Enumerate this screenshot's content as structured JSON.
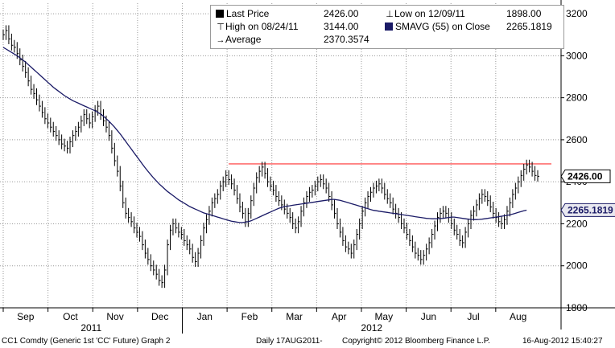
{
  "legend": {
    "last_price": {
      "label": "Last Price",
      "value": "2426.00",
      "color": "#000000"
    },
    "low": {
      "label": "Low on 12/09/11",
      "value": "1898.00"
    },
    "high": {
      "label": "High on 08/24/11",
      "value": "3144.00"
    },
    "smavg": {
      "label": "SMAVG (55) on Close",
      "value": "2265.1819",
      "color": "#1a1a66"
    },
    "average": {
      "label": "Average",
      "value": "2370.3574"
    }
  },
  "footer": {
    "ticker": "CC1 Comdty (Generic 1st 'CC' Future) Graph 2",
    "period": "Daily 17AUG2011-",
    "copyright": "Copyright© 2012 Bloomberg Finance L.P.",
    "timestamp": "16-Aug-2012 15:40:27"
  },
  "chart_data": {
    "type": "line",
    "subtype": "ohlc bars with moving average",
    "y_axis": {
      "position": "right",
      "ylim": [
        1800,
        3250
      ],
      "ticks": [
        "3200",
        "3000",
        "2800",
        "2600",
        "2400",
        "2200",
        "2000",
        "1800"
      ]
    },
    "x_axis": {
      "months": [
        "Sep",
        "Oct",
        "Nov",
        "Dec",
        "Jan",
        "Feb",
        "Mar",
        "Apr",
        "May",
        "Jun",
        "Jul",
        "Aug"
      ],
      "years": [
        "2011",
        "2012"
      ]
    },
    "grid": "dotted",
    "price_labels": [
      {
        "text": "2426.00",
        "value": 2426,
        "style": "last"
      },
      {
        "text": "2265.1819",
        "value": 2265.1819,
        "style": "sma"
      }
    ],
    "resistance_line": {
      "value": 2485,
      "color": "#ff3333"
    },
    "series": [
      {
        "name": "Last Price",
        "color": "#000000",
        "values": [
          3100,
          3120,
          3080,
          3050,
          3040,
          3010,
          2980,
          2950,
          2920,
          2880,
          2840,
          2820,
          2790,
          2760,
          2730,
          2700,
          2680,
          2660,
          2640,
          2620,
          2600,
          2580,
          2570,
          2560,
          2590,
          2620,
          2640,
          2660,
          2690,
          2720,
          2700,
          2680,
          2710,
          2740,
          2760,
          2720,
          2690,
          2660,
          2620,
          2560,
          2500,
          2450,
          2380,
          2300,
          2250,
          2230,
          2210,
          2180,
          2160,
          2140,
          2100,
          2060,
          2030,
          2000,
          1980,
          1960,
          1930,
          1920,
          1980,
          2100,
          2170,
          2200,
          2180,
          2160,
          2150,
          2120,
          2100,
          2080,
          2040,
          2020,
          2060,
          2120,
          2180,
          2220,
          2260,
          2300,
          2320,
          2340,
          2380,
          2400,
          2430,
          2410,
          2390,
          2360,
          2320,
          2280,
          2250,
          2210,
          2250,
          2310,
          2370,
          2420,
          2450,
          2470,
          2440,
          2400,
          2380,
          2360,
          2330,
          2310,
          2290,
          2270,
          2250,
          2230,
          2200,
          2180,
          2210,
          2260,
          2300,
          2330,
          2350,
          2360,
          2380,
          2400,
          2410,
          2390,
          2370,
          2330,
          2290,
          2250,
          2200,
          2160,
          2120,
          2090,
          2080,
          2060,
          2100,
          2150,
          2200,
          2260,
          2300,
          2330,
          2350,
          2370,
          2380,
          2390,
          2370,
          2340,
          2320,
          2300,
          2270,
          2250,
          2230,
          2200,
          2180,
          2150,
          2120,
          2090,
          2060,
          2050,
          2030,
          2050,
          2080,
          2110,
          2150,
          2190,
          2230,
          2250,
          2260,
          2250,
          2230,
          2200,
          2170,
          2150,
          2120,
          2110,
          2160,
          2200,
          2240,
          2260,
          2290,
          2320,
          2340,
          2330,
          2310,
          2280,
          2250,
          2230,
          2210,
          2200,
          2220,
          2260,
          2300,
          2340,
          2370,
          2400,
          2430,
          2460,
          2480,
          2470,
          2450,
          2430,
          2426
        ]
      },
      {
        "name": "SMAVG (55) on Close",
        "color": "#1a1a66",
        "values": [
          3040,
          3032,
          3024,
          3016,
          3008,
          3000,
          2990,
          2980,
          2970,
          2958,
          2946,
          2934,
          2922,
          2910,
          2898,
          2886,
          2874,
          2862,
          2850,
          2840,
          2830,
          2820,
          2810,
          2802,
          2794,
          2786,
          2780,
          2774,
          2768,
          2762,
          2756,
          2750,
          2744,
          2738,
          2730,
          2722,
          2712,
          2700,
          2688,
          2674,
          2660,
          2644,
          2628,
          2610,
          2592,
          2574,
          2556,
          2538,
          2520,
          2502,
          2484,
          2466,
          2450,
          2434,
          2418,
          2404,
          2390,
          2378,
          2366,
          2354,
          2344,
          2334,
          2324,
          2314,
          2306,
          2298,
          2290,
          2282,
          2276,
          2270,
          2264,
          2258,
          2252,
          2248,
          2244,
          2240,
          2236,
          2232,
          2228,
          2224,
          2220,
          2216,
          2212,
          2210,
          2208,
          2206,
          2206,
          2208,
          2210,
          2214,
          2220,
          2226,
          2232,
          2238,
          2244,
          2250,
          2256,
          2262,
          2268,
          2274,
          2278,
          2282,
          2284,
          2286,
          2288,
          2290,
          2292,
          2294,
          2296,
          2298,
          2300,
          2302,
          2304,
          2306,
          2308,
          2310,
          2312,
          2314,
          2316,
          2316,
          2314,
          2312,
          2308,
          2304,
          2300,
          2296,
          2292,
          2288,
          2284,
          2280,
          2276,
          2272,
          2268,
          2264,
          2262,
          2260,
          2258,
          2256,
          2254,
          2252,
          2250,
          2248,
          2246,
          2244,
          2242,
          2240,
          2238,
          2236,
          2234,
          2232,
          2230,
          2228,
          2226,
          2225,
          2224,
          2224,
          2224,
          2225,
          2226,
          2228,
          2230,
          2232,
          2232,
          2230,
          2228,
          2226,
          2224,
          2222,
          2221,
          2220,
          2220,
          2221,
          2222,
          2224,
          2226,
          2228,
          2230,
          2232,
          2234,
          2236,
          2238,
          2240,
          2243,
          2246,
          2250,
          2254,
          2258,
          2262,
          2265
        ]
      }
    ]
  }
}
